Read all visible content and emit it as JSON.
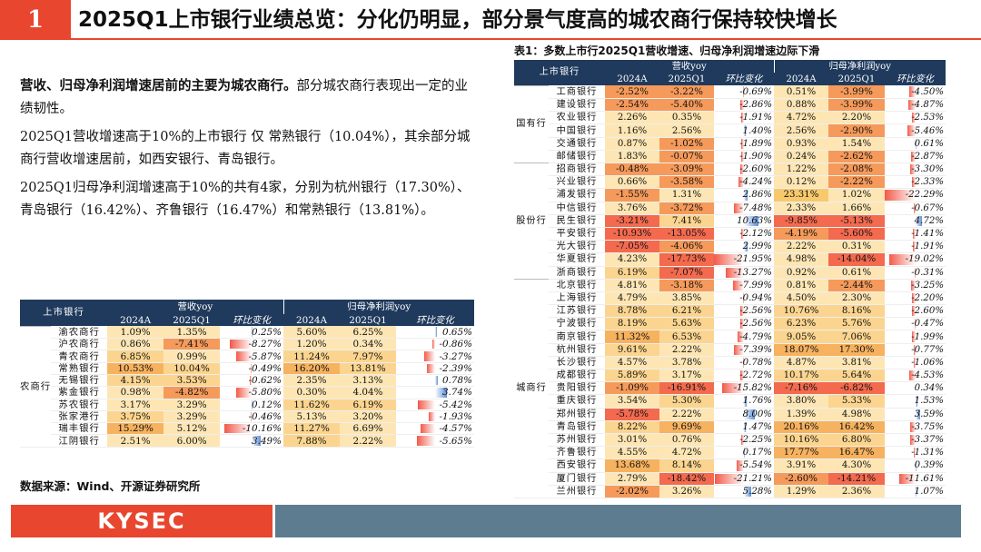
{
  "header": {
    "section_number": "1",
    "title": "2025Q1上市银行业绩总览：分化仍明显，部分景气度高的城农商行保持较快增长"
  },
  "body": {
    "p1_bold": "营收、归母净利润增速居前的主要为城农商行。",
    "p1_rest": "部分城农商行表现出一定的业绩韧性。",
    "p2": "2025Q1营收增速高于10%的上市银行 仅 常熟银行（10.04%），其余部分城商行营收增速居前，如西安银行、青岛银行。",
    "p3": "2025Q1归母净利润增速高于10%的共有4家，分别为杭州银行（17.30%）、青岛银行（16.42%）、齐鲁银行（16.47%）和常熟银行（13.81%）。"
  },
  "source": "数据来源：Wind、开源证券研究所",
  "footer": {
    "logo": "KYSEC"
  },
  "table_headers": {
    "bank": "上市银行",
    "revenue": "营收yoy",
    "profit": "归母净利润yoy",
    "y2024": "2024A",
    "q1": "2025Q1",
    "chg": "环比变化"
  },
  "right_table_title": "表1：多数上市行2025Q1营收增速、归母净利润增速边际下滑",
  "left_table": {
    "groups": [
      {
        "name": "农商行",
        "rows": [
          {
            "bank": "渝农商行",
            "r24": "1.09%",
            "r25": "1.35%",
            "rc": "0.25%",
            "rcv": 0.25,
            "p24": "5.60%",
            "p25": "6.25%",
            "pc": "0.65%",
            "pcv": 0.65,
            "rh": [
              1,
              1
            ],
            "ph": [
              1,
              1
            ]
          },
          {
            "bank": "沪农商行",
            "r24": "0.86%",
            "r25": "-7.41%",
            "rc": "-8.27%",
            "rcv": -8.27,
            "p24": "1.20%",
            "p25": "0.34%",
            "pc": "-0.86%",
            "pcv": -0.86,
            "rh": [
              1,
              4
            ],
            "ph": [
              1,
              1
            ]
          },
          {
            "bank": "青农商行",
            "r24": "6.85%",
            "r25": "0.99%",
            "rc": "-5.87%",
            "rcv": -5.87,
            "p24": "11.24%",
            "p25": "7.97%",
            "pc": "-3.27%",
            "pcv": -3.27,
            "rh": [
              2,
              1
            ],
            "ph": [
              2,
              2
            ]
          },
          {
            "bank": "常熟银行",
            "r24": "10.53%",
            "r25": "10.04%",
            "rc": "-0.49%",
            "rcv": -0.49,
            "p24": "16.20%",
            "p25": "13.81%",
            "pc": "-2.39%",
            "pcv": -2.39,
            "rh": [
              3,
              2
            ],
            "ph": [
              3,
              2
            ]
          },
          {
            "bank": "无锡银行",
            "r24": "4.15%",
            "r25": "3.53%",
            "rc": "-0.62%",
            "rcv": -0.62,
            "p24": "2.35%",
            "p25": "3.13%",
            "pc": "0.78%",
            "pcv": 0.78,
            "rh": [
              2,
              2
            ],
            "ph": [
              1,
              1
            ]
          },
          {
            "bank": "紫金银行",
            "r24": "0.98%",
            "r25": "-4.82%",
            "rc": "-5.80%",
            "rcv": -5.8,
            "p24": "0.30%",
            "p25": "4.04%",
            "pc": "3.74%",
            "pcv": 3.74,
            "rh": [
              1,
              4
            ],
            "ph": [
              1,
              1
            ]
          },
          {
            "bank": "苏农银行",
            "r24": "3.17%",
            "r25": "3.29%",
            "rc": "0.12%",
            "rcv": 0.12,
            "p24": "11.62%",
            "p25": "6.19%",
            "pc": "-5.42%",
            "pcv": -5.42,
            "rh": [
              1,
              1
            ],
            "ph": [
              2,
              2
            ]
          },
          {
            "bank": "张家港行",
            "r24": "3.75%",
            "r25": "3.29%",
            "rc": "-0.46%",
            "rcv": -0.46,
            "p24": "5.13%",
            "p25": "3.20%",
            "pc": "-1.93%",
            "pcv": -1.93,
            "rh": [
              2,
              1
            ],
            "ph": [
              1,
              1
            ]
          },
          {
            "bank": "瑞丰银行",
            "r24": "15.29%",
            "r25": "5.12%",
            "rc": "-10.16%",
            "rcv": -10.16,
            "p24": "11.27%",
            "p25": "6.69%",
            "pc": "-4.57%",
            "pcv": -4.57,
            "rh": [
              3,
              1
            ],
            "ph": [
              2,
              1
            ]
          },
          {
            "bank": "江阴银行",
            "r24": "2.51%",
            "r25": "6.00%",
            "rc": "3.49%",
            "rcv": 3.49,
            "p24": "7.88%",
            "p25": "2.22%",
            "pc": "-5.65%",
            "pcv": -5.65,
            "rh": [
              1,
              1
            ],
            "ph": [
              2,
              1
            ]
          }
        ]
      }
    ]
  },
  "right_table": {
    "groups": [
      {
        "name": "国有行",
        "rows": [
          {
            "bank": "工商银行",
            "r24": "-2.52%",
            "r25": "-3.22%",
            "rc": "-0.69%",
            "rcv": -0.69,
            "p24": "0.51%",
            "p25": "-3.99%",
            "pc": "-4.50%",
            "pcv": -4.5,
            "rh": [
              4,
              4
            ],
            "ph": [
              1,
              4
            ]
          },
          {
            "bank": "建设银行",
            "r24": "-2.54%",
            "r25": "-5.40%",
            "rc": "-2.86%",
            "rcv": -2.86,
            "p24": "0.88%",
            "p25": "-3.99%",
            "pc": "-4.87%",
            "pcv": -4.87,
            "rh": [
              4,
              4
            ],
            "ph": [
              1,
              4
            ]
          },
          {
            "bank": "农业银行",
            "r24": "2.26%",
            "r25": "0.35%",
            "rc": "-1.91%",
            "rcv": -1.91,
            "p24": "4.72%",
            "p25": "2.20%",
            "pc": "-2.53%",
            "pcv": -2.53,
            "rh": [
              1,
              1
            ],
            "ph": [
              1,
              1
            ]
          },
          {
            "bank": "中国银行",
            "r24": "1.16%",
            "r25": "2.56%",
            "rc": "1.40%",
            "rcv": 1.4,
            "p24": "2.56%",
            "p25": "-2.90%",
            "pc": "-5.46%",
            "pcv": -5.46,
            "rh": [
              1,
              1
            ],
            "ph": [
              1,
              4
            ]
          },
          {
            "bank": "交通银行",
            "r24": "0.87%",
            "r25": "-1.02%",
            "rc": "-1.89%",
            "rcv": -1.89,
            "p24": "0.93%",
            "p25": "1.54%",
            "pc": "0.61%",
            "pcv": 0.61,
            "rh": [
              1,
              4
            ],
            "ph": [
              1,
              1
            ]
          },
          {
            "bank": "邮储银行",
            "r24": "1.83%",
            "r25": "-0.07%",
            "rc": "-1.90%",
            "rcv": -1.9,
            "p24": "0.24%",
            "p25": "-2.62%",
            "pc": "-2.87%",
            "pcv": -2.87,
            "rh": [
              1,
              4
            ],
            "ph": [
              1,
              4
            ]
          }
        ]
      },
      {
        "name": "股份行",
        "rows": [
          {
            "bank": "招商银行",
            "r24": "-0.48%",
            "r25": "-3.09%",
            "rc": "-2.60%",
            "rcv": -2.6,
            "p24": "1.22%",
            "p25": "-2.08%",
            "pc": "-3.30%",
            "pcv": -3.3,
            "rh": [
              4,
              4
            ],
            "ph": [
              1,
              4
            ]
          },
          {
            "bank": "兴业银行",
            "r24": "0.66%",
            "r25": "-3.58%",
            "rc": "-4.24%",
            "rcv": -4.24,
            "p24": "0.12%",
            "p25": "-2.22%",
            "pc": "-2.33%",
            "pcv": -2.33,
            "rh": [
              1,
              4
            ],
            "ph": [
              1,
              4
            ]
          },
          {
            "bank": "浦发银行",
            "r24": "-1.55%",
            "r25": "1.31%",
            "rc": "2.86%",
            "rcv": 2.86,
            "p24": "23.31%",
            "p25": "1.02%",
            "pc": "-22.29%",
            "pcv": -22.29,
            "rh": [
              4,
              1
            ],
            "ph": [
              0,
              1
            ]
          },
          {
            "bank": "中信银行",
            "r24": "3.76%",
            "r25": "-3.72%",
            "rc": "-7.48%",
            "rcv": -7.48,
            "p24": "2.33%",
            "p25": "1.66%",
            "pc": "-0.67%",
            "pcv": -0.67,
            "rh": [
              1,
              4
            ],
            "ph": [
              1,
              1
            ]
          },
          {
            "bank": "民生银行",
            "r24": "-3.21%",
            "r25": "7.41%",
            "rc": "10.63%",
            "rcv": 10.63,
            "p24": "-9.85%",
            "p25": "-5.13%",
            "pc": "4.72%",
            "pcv": 4.72,
            "rh": [
              5,
              2
            ],
            "ph": [
              5,
              5
            ]
          },
          {
            "bank": "平安银行",
            "r24": "-10.93%",
            "r25": "-13.05%",
            "rc": "-2.12%",
            "rcv": -2.12,
            "p24": "-4.19%",
            "p25": "-5.60%",
            "pc": "-1.41%",
            "pcv": -1.41,
            "rh": [
              5,
              5
            ],
            "ph": [
              4,
              5
            ]
          },
          {
            "bank": "光大银行",
            "r24": "-7.05%",
            "r25": "-4.06%",
            "rc": "2.99%",
            "rcv": 2.99,
            "p24": "2.22%",
            "p25": "0.31%",
            "pc": "-1.91%",
            "pcv": -1.91,
            "rh": [
              5,
              4
            ],
            "ph": [
              1,
              1
            ]
          },
          {
            "bank": "华夏银行",
            "r24": "4.23%",
            "r25": "-17.73%",
            "rc": "-21.95%",
            "rcv": -21.95,
            "p24": "4.98%",
            "p25": "-14.04%",
            "pc": "-19.02%",
            "pcv": -19.02,
            "rh": [
              1,
              5
            ],
            "ph": [
              1,
              5
            ]
          },
          {
            "bank": "浙商银行",
            "r24": "6.19%",
            "r25": "-7.07%",
            "rc": "-13.27%",
            "rcv": -13.27,
            "p24": "0.92%",
            "p25": "0.61%",
            "pc": "-0.31%",
            "pcv": -0.31,
            "rh": [
              2,
              5
            ],
            "ph": [
              1,
              1
            ]
          }
        ]
      },
      {
        "name": "城商行",
        "rows": [
          {
            "bank": "北京银行",
            "r24": "4.81%",
            "r25": "-3.18%",
            "rc": "-7.99%",
            "rcv": -7.99,
            "p24": "0.81%",
            "p25": "-2.44%",
            "pc": "-3.25%",
            "pcv": -3.25,
            "rh": [
              1,
              4
            ],
            "ph": [
              1,
              4
            ]
          },
          {
            "bank": "上海银行",
            "r24": "4.79%",
            "r25": "3.85%",
            "rc": "-0.94%",
            "rcv": -0.94,
            "p24": "4.50%",
            "p25": "2.30%",
            "pc": "-2.20%",
            "pcv": -2.2,
            "rh": [
              1,
              1
            ],
            "ph": [
              1,
              1
            ]
          },
          {
            "bank": "江苏银行",
            "r24": "8.78%",
            "r25": "6.21%",
            "rc": "-2.56%",
            "rcv": -2.56,
            "p24": "10.76%",
            "p25": "8.16%",
            "pc": "-2.60%",
            "pcv": -2.6,
            "rh": [
              2,
              2
            ],
            "ph": [
              2,
              2
            ]
          },
          {
            "bank": "宁波银行",
            "r24": "8.19%",
            "r25": "5.63%",
            "rc": "-2.56%",
            "rcv": -2.56,
            "p24": "6.23%",
            "p25": "5.76%",
            "pc": "-0.47%",
            "pcv": -0.47,
            "rh": [
              2,
              2
            ],
            "ph": [
              2,
              2
            ]
          },
          {
            "bank": "南京银行",
            "r24": "11.32%",
            "r25": "6.53%",
            "rc": "-4.79%",
            "rcv": -4.79,
            "p24": "9.05%",
            "p25": "7.06%",
            "pc": "-1.99%",
            "pcv": -1.99,
            "rh": [
              3,
              2
            ],
            "ph": [
              2,
              2
            ]
          },
          {
            "bank": "杭州银行",
            "r24": "9.61%",
            "r25": "2.22%",
            "rc": "-7.39%",
            "rcv": -7.39,
            "p24": "18.07%",
            "p25": "17.30%",
            "pc": "-0.77%",
            "pcv": -0.77,
            "rh": [
              2,
              1
            ],
            "ph": [
              3,
              3
            ]
          },
          {
            "bank": "长沙银行",
            "r24": "4.57%",
            "r25": "3.78%",
            "rc": "-0.78%",
            "rcv": -0.78,
            "p24": "4.87%",
            "p25": "3.81%",
            "pc": "-1.06%",
            "pcv": -1.06,
            "rh": [
              1,
              1
            ],
            "ph": [
              1,
              1
            ]
          },
          {
            "bank": "成都银行",
            "r24": "5.89%",
            "r25": "3.17%",
            "rc": "-2.72%",
            "rcv": -2.72,
            "p24": "10.17%",
            "p25": "5.64%",
            "pc": "-4.53%",
            "pcv": -4.53,
            "rh": [
              2,
              1
            ],
            "ph": [
              2,
              2
            ]
          },
          {
            "bank": "贵阳银行",
            "r24": "-1.09%",
            "r25": "-16.91%",
            "rc": "-15.82%",
            "rcv": -15.82,
            "p24": "-7.16%",
            "p25": "-6.82%",
            "pc": "0.34%",
            "pcv": 0.34,
            "rh": [
              4,
              5
            ],
            "ph": [
              5,
              5
            ]
          },
          {
            "bank": "重庆银行",
            "r24": "3.54%",
            "r25": "5.30%",
            "rc": "1.76%",
            "rcv": 1.76,
            "p24": "3.80%",
            "p25": "5.33%",
            "pc": "1.53%",
            "pcv": 1.53,
            "rh": [
              1,
              2
            ],
            "ph": [
              1,
              2
            ]
          },
          {
            "bank": "郑州银行",
            "r24": "-5.78%",
            "r25": "2.22%",
            "rc": "8.00%",
            "rcv": 8.0,
            "p24": "1.39%",
            "p25": "4.98%",
            "pc": "3.59%",
            "pcv": 3.59,
            "rh": [
              5,
              1
            ],
            "ph": [
              1,
              1
            ]
          },
          {
            "bank": "青岛银行",
            "r24": "8.22%",
            "r25": "9.69%",
            "rc": "1.47%",
            "rcv": 1.47,
            "p24": "20.16%",
            "p25": "16.42%",
            "pc": "-3.75%",
            "pcv": -3.75,
            "rh": [
              2,
              3
            ],
            "ph": [
              3,
              3
            ]
          },
          {
            "bank": "苏州银行",
            "r24": "3.01%",
            "r25": "0.76%",
            "rc": "-2.25%",
            "rcv": -2.25,
            "p24": "10.16%",
            "p25": "6.80%",
            "pc": "-3.37%",
            "pcv": -3.37,
            "rh": [
              1,
              1
            ],
            "ph": [
              2,
              2
            ]
          },
          {
            "bank": "齐鲁银行",
            "r24": "4.55%",
            "r25": "4.72%",
            "rc": "0.17%",
            "rcv": 0.17,
            "p24": "17.77%",
            "p25": "16.47%",
            "pc": "-1.31%",
            "pcv": -1.31,
            "rh": [
              1,
              1
            ],
            "ph": [
              3,
              3
            ]
          },
          {
            "bank": "西安银行",
            "r24": "13.68%",
            "r25": "8.14%",
            "rc": "-5.54%",
            "rcv": -5.54,
            "p24": "3.91%",
            "p25": "4.30%",
            "pc": "0.39%",
            "pcv": 0.39,
            "rh": [
              3,
              2
            ],
            "ph": [
              1,
              1
            ]
          },
          {
            "bank": "厦门银行",
            "r24": "2.79%",
            "r25": "-18.42%",
            "rc": "-21.21%",
            "rcv": -21.21,
            "p24": "-2.60%",
            "p25": "-14.21%",
            "pc": "-11.61%",
            "pcv": -11.61,
            "rh": [
              1,
              5
            ],
            "ph": [
              4,
              5
            ]
          },
          {
            "bank": "兰州银行",
            "r24": "-2.02%",
            "r25": "3.26%",
            "rc": "5.28%",
            "rcv": 5.28,
            "p24": "1.29%",
            "p25": "2.36%",
            "pc": "1.07%",
            "pcv": 1.07,
            "rh": [
              4,
              1
            ],
            "ph": [
              1,
              1
            ]
          }
        ]
      }
    ]
  },
  "colors": {
    "accent": "#e8462e",
    "header": "#1f3a5c",
    "heat": [
      "#f8c96b",
      "#fde6b4",
      "#fbd58f",
      "#f6b25f",
      "#f59a5a",
      "#f36a4f"
    ]
  }
}
